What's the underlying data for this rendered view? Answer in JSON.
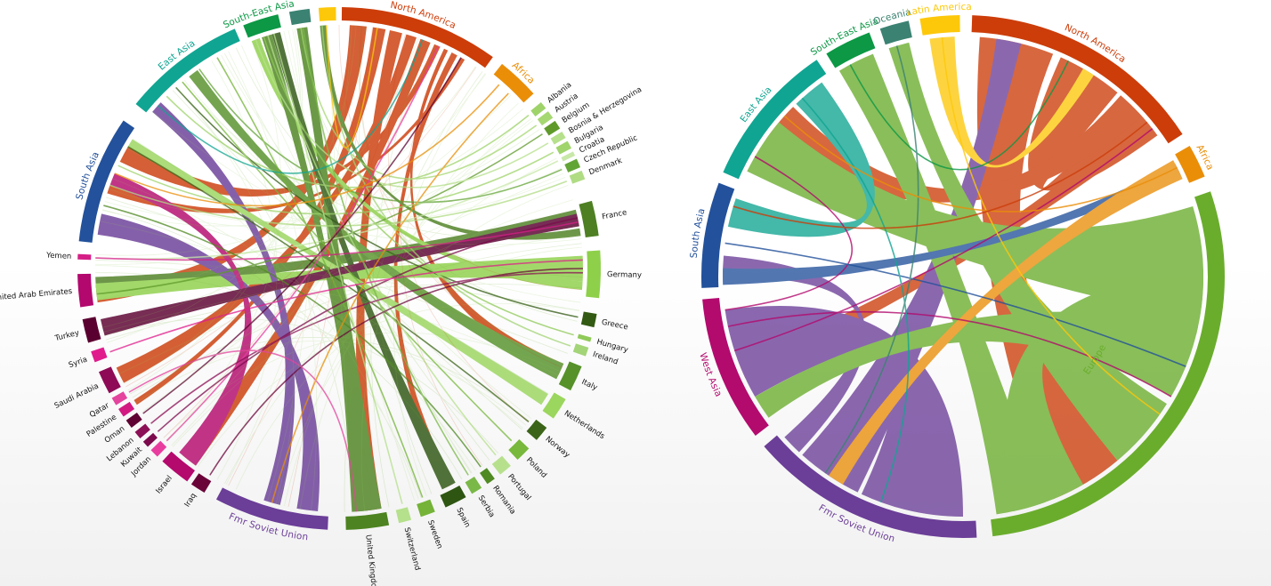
{
  "left_diagram": {
    "groups": [
      {
        "label": "North America",
        "color": "#cc3d0a"
      },
      {
        "label": "Africa",
        "color": "#ea8e08"
      },
      {
        "label": "Albania",
        "color": "#9ed36a"
      },
      {
        "label": "Austria",
        "color": "#a6d872"
      },
      {
        "label": "Belgium",
        "color": "#5f9a2a"
      },
      {
        "label": "Bosnia & Herzegovina",
        "color": "#b6e08c"
      },
      {
        "label": "Bulgaria",
        "color": "#a0d46c"
      },
      {
        "label": "Croatia",
        "color": "#c8e8a8"
      },
      {
        "label": "Czech Republic",
        "color": "#63a437"
      },
      {
        "label": "Denmark",
        "color": "#b0dc84"
      },
      {
        "label": "France",
        "color": "#4e7f23"
      },
      {
        "label": "Germany",
        "color": "#8ed04a"
      },
      {
        "label": "Greece",
        "color": "#325a12"
      },
      {
        "label": "Hungary",
        "color": "#8fca58"
      },
      {
        "label": "Ireland",
        "color": "#a3d477"
      },
      {
        "label": "Italy",
        "color": "#56912a"
      },
      {
        "label": "Netherlands",
        "color": "#9bd65e"
      },
      {
        "label": "Norway",
        "color": "#3b6418"
      },
      {
        "label": "Poland",
        "color": "#78b83c"
      },
      {
        "label": "Portugal",
        "color": "#b7e08d"
      },
      {
        "label": "Romania",
        "color": "#4f8a22"
      },
      {
        "label": "Serbia",
        "color": "#7ab848"
      },
      {
        "label": "Spain",
        "color": "#2e5512"
      },
      {
        "label": "Sweden",
        "color": "#74b337"
      },
      {
        "label": "Switzerland",
        "color": "#b5e08c"
      },
      {
        "label": "United Kingdom",
        "color": "#4d8320"
      },
      {
        "label": "Fmr Soviet Union",
        "color": "#6b3e98"
      },
      {
        "label": "Iraq",
        "color": "#6a0438"
      },
      {
        "label": "Israel",
        "color": "#b4096d"
      },
      {
        "label": "Jordan",
        "color": "#e83d9f"
      },
      {
        "label": "Kuwait",
        "color": "#7c0a4c"
      },
      {
        "label": "Lebanon",
        "color": "#8c1056"
      },
      {
        "label": "Oman",
        "color": "#5e0333"
      },
      {
        "label": "Palestine",
        "color": "#d21a82"
      },
      {
        "label": "Qatar",
        "color": "#e4439e"
      },
      {
        "label": "Saudi Arabia",
        "color": "#8e0a56"
      },
      {
        "label": "Syria",
        "color": "#e01c8c"
      },
      {
        "label": "Turkey",
        "color": "#5a0030"
      },
      {
        "label": "United Arab Emirates",
        "color": "#b3086e"
      },
      {
        "label": "Yemen",
        "color": "#d51f86"
      },
      {
        "label": "South Asia",
        "color": "#23519b"
      },
      {
        "label": "East Asia",
        "color": "#10a592"
      },
      {
        "label": "South-East Asia",
        "color": "#0c9845"
      },
      {
        "label": "",
        "color": "#3b8272"
      },
      {
        "label": "",
        "color": "#fdc80a"
      }
    ]
  },
  "right_diagram": {
    "groups": [
      {
        "label": "North America",
        "color": "#cc3d0a"
      },
      {
        "label": "Africa",
        "color": "#ea8e08"
      },
      {
        "label": "Europe",
        "color": "#6aad2c"
      },
      {
        "label": "Fmr Soviet Union",
        "color": "#6b3e98"
      },
      {
        "label": "West Asia",
        "color": "#b30a6e"
      },
      {
        "label": "South Asia",
        "color": "#23519b"
      },
      {
        "label": "East Asia",
        "color": "#10a592"
      },
      {
        "label": "South-East Asia",
        "color": "#0c9845"
      },
      {
        "label": "Oceania",
        "color": "#3b8272"
      },
      {
        "label": "Latin America",
        "color": "#fdc80a"
      }
    ]
  }
}
